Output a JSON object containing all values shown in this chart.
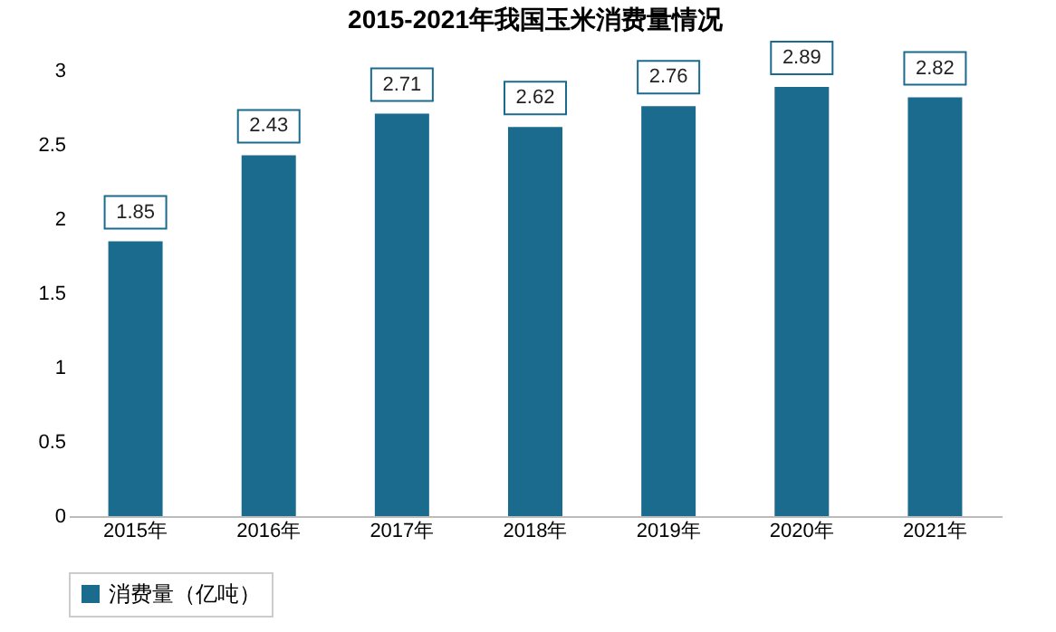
{
  "chart_data": {
    "type": "bar",
    "title": "2015-2021年我国玉米消费量情况",
    "categories": [
      "2015年",
      "2016年",
      "2017年",
      "2018年",
      "2019年",
      "2020年",
      "2021年"
    ],
    "series": [
      {
        "name": "消费量（亿吨）",
        "color": "#1b6b8e",
        "values": [
          1.85,
          2.43,
          2.71,
          2.62,
          2.76,
          2.89,
          2.82
        ]
      }
    ],
    "ylim": [
      0,
      3
    ],
    "yticks": [
      0,
      0.5,
      1,
      1.5,
      2,
      2.5,
      3
    ],
    "grid": false,
    "legend": "bottom",
    "data_labels": true
  }
}
